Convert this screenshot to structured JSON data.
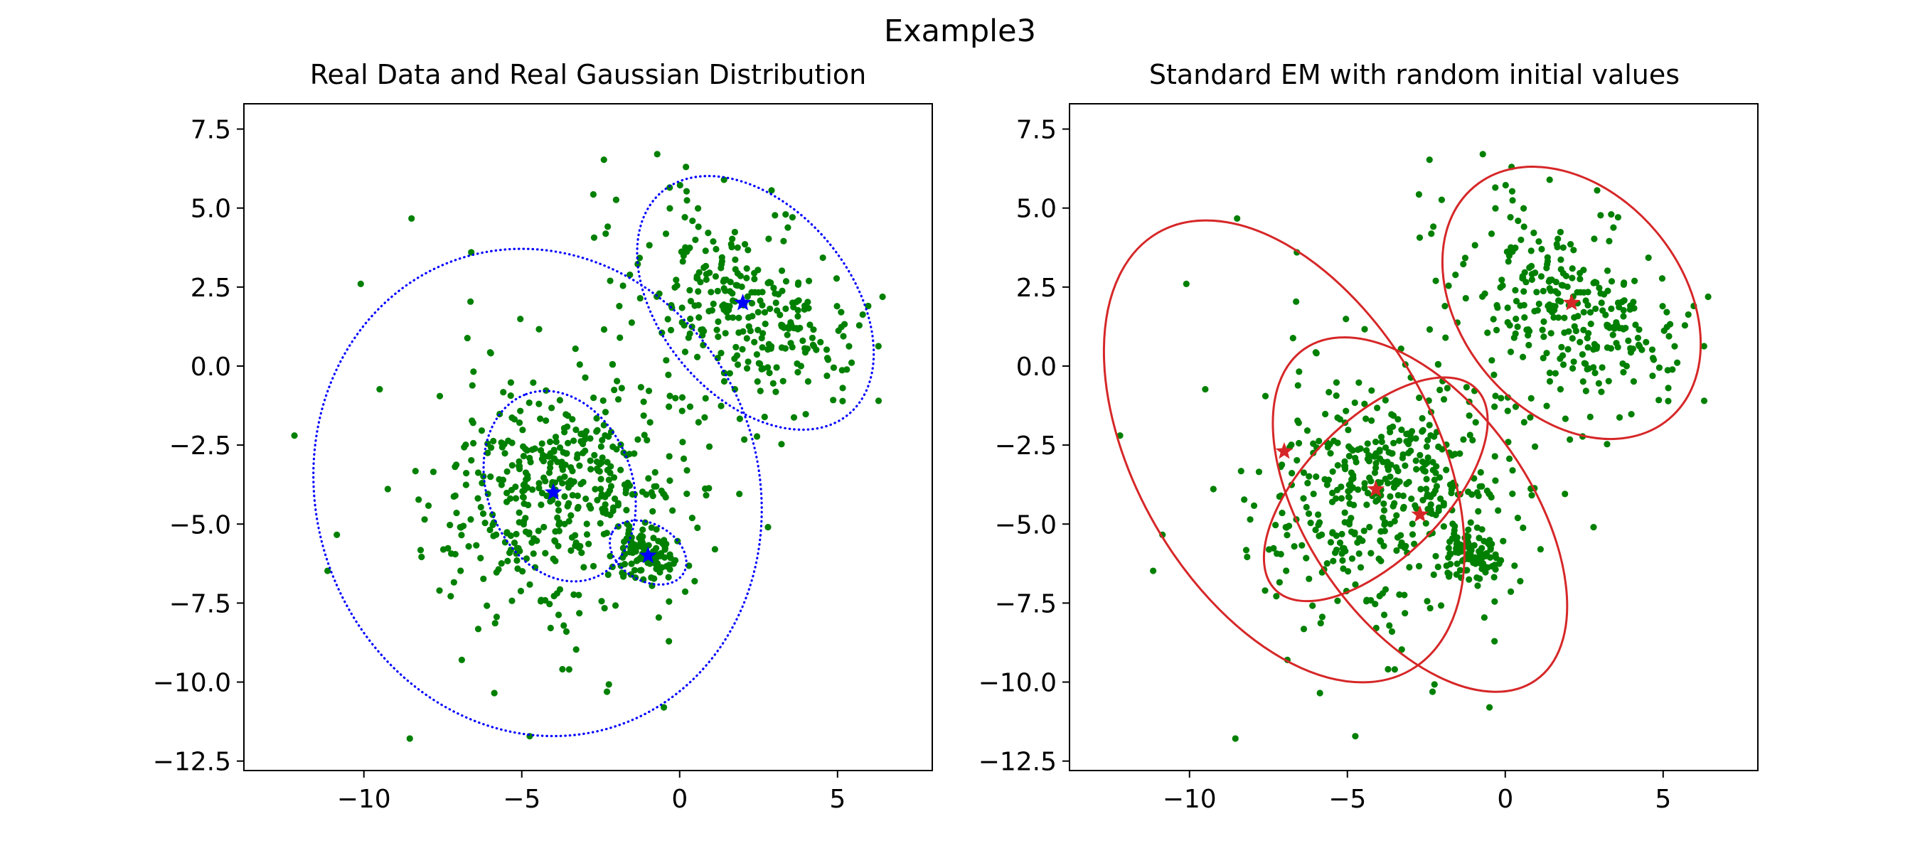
{
  "figure": {
    "suptitle": "Example3"
  },
  "chart_data": [
    {
      "type": "scatter",
      "title": "Real Data and Real Gaussian Distribution",
      "xlabel": "",
      "ylabel": "",
      "xlim": [
        -13.8,
        8.0
      ],
      "ylim": [
        -12.8,
        8.3
      ],
      "xticks": [
        -10,
        -5,
        0,
        5
      ],
      "yticks": [
        7.5,
        5.0,
        2.5,
        0.0,
        -2.5,
        -5.0,
        -7.5,
        -10.0,
        -12.5
      ],
      "xtick_labels": [
        "−10",
        "−5",
        "0",
        "5"
      ],
      "ytick_labels": [
        "7.5",
        "5.0",
        "2.5",
        "0.0",
        "−2.5",
        "−5.0",
        "−7.5",
        "−10.0",
        "−12.5"
      ],
      "grid": false,
      "points_color": "#008000",
      "centers_color": "#0000ff",
      "centers_marker": "star",
      "centers": [
        {
          "x": -4.0,
          "y": -4.0
        },
        {
          "x": 2.0,
          "y": 2.0
        },
        {
          "x": -1.0,
          "y": -6.0
        }
      ],
      "ellipse_style": "dotted",
      "ellipse_color": "#0000ff",
      "ellipses": [
        {
          "cx": -4.5,
          "cy": -4.0,
          "rx": 7.0,
          "ry": 7.8,
          "angle": 20
        },
        {
          "cx": 2.4,
          "cy": 2.0,
          "rx": 4.6,
          "ry": 3.0,
          "angle": 130
        },
        {
          "cx": -3.8,
          "cy": -3.8,
          "rx": 3.1,
          "ry": 2.3,
          "angle": 110
        },
        {
          "cx": -1.0,
          "cy": -5.9,
          "rx": 1.3,
          "ry": 0.9,
          "angle": 150
        }
      ],
      "clusters": [
        {
          "n": 330,
          "mean": [
            -4.0,
            -4.0
          ],
          "cov": [
            [
              2.7,
              0.5
            ],
            [
              0.5,
              2.3
            ]
          ]
        },
        {
          "n": 290,
          "mean": [
            2.0,
            1.9
          ],
          "cov": [
            [
              3.2,
              -1.3
            ],
            [
              -1.3,
              2.6
            ]
          ]
        },
        {
          "n": 140,
          "mean": [
            -3.5,
            -4.0
          ],
          "cov": [
            [
              9.0,
              -1.3
            ],
            [
              -1.3,
              8.0
            ]
          ]
        },
        {
          "n": 90,
          "mean": [
            -1.0,
            -6.0
          ],
          "cov": [
            [
              0.2,
              0.0
            ],
            [
              0.0,
              0.15
            ]
          ]
        }
      ],
      "extra_points": [
        {
          "x": -6.6,
          "y": 3.6
        },
        {
          "x": 0.2,
          "y": 6.3
        },
        {
          "x": -12.2,
          "y": -2.2
        },
        {
          "x": -10.1,
          "y": 2.6
        },
        {
          "x": 6.3,
          "y": -1.1
        },
        {
          "x": -6.9,
          "y": -9.3
        },
        {
          "x": -0.5,
          "y": -10.8
        },
        {
          "x": -3.5,
          "y": -9.6
        }
      ]
    },
    {
      "type": "scatter",
      "title": "Standard EM with random initial values",
      "xlabel": "",
      "ylabel": "",
      "xlim": [
        -13.8,
        8.0
      ],
      "ylim": [
        -12.8,
        8.3
      ],
      "xticks": [
        -10,
        -5,
        0,
        5
      ],
      "yticks": [
        7.5,
        5.0,
        2.5,
        0.0,
        -2.5,
        -5.0,
        -7.5,
        -10.0,
        -12.5
      ],
      "xtick_labels": [
        "−10",
        "−5",
        "0",
        "5"
      ],
      "ytick_labels": [
        "7.5",
        "5.0",
        "2.5",
        "0.0",
        "−2.5",
        "−5.0",
        "−7.5",
        "−10.0",
        "−12.5"
      ],
      "grid": false,
      "points_color": "#008000",
      "centers_color": "#d62728",
      "centers_marker": "star",
      "centers": [
        {
          "x": 2.1,
          "y": 2.0
        },
        {
          "x": -7.0,
          "y": -2.7
        },
        {
          "x": -4.1,
          "y": -3.9
        },
        {
          "x": -2.7,
          "y": -4.7
        }
      ],
      "ellipse_style": "solid",
      "ellipse_color": "#d62728",
      "ellipses": [
        {
          "cx": 2.1,
          "cy": 2.0,
          "rx": 4.8,
          "ry": 3.5,
          "angle": 130
        },
        {
          "cx": -7.0,
          "cy": -2.7,
          "rx": 8.0,
          "ry": 4.7,
          "angle": 120
        },
        {
          "cx": -4.1,
          "cy": -3.9,
          "rx": 4.5,
          "ry": 2.2,
          "angle": 45
        },
        {
          "cx": -2.7,
          "cy": -4.7,
          "rx": 6.4,
          "ry": 3.5,
          "angle": 125
        }
      ],
      "clusters": [
        {
          "n": 330,
          "mean": [
            -4.0,
            -4.0
          ],
          "cov": [
            [
              2.7,
              0.5
            ],
            [
              0.5,
              2.3
            ]
          ]
        },
        {
          "n": 290,
          "mean": [
            2.0,
            1.9
          ],
          "cov": [
            [
              3.2,
              -1.3
            ],
            [
              -1.3,
              2.6
            ]
          ]
        },
        {
          "n": 140,
          "mean": [
            -3.5,
            -4.0
          ],
          "cov": [
            [
              9.0,
              -1.3
            ],
            [
              -1.3,
              8.0
            ]
          ]
        },
        {
          "n": 90,
          "mean": [
            -1.0,
            -6.0
          ],
          "cov": [
            [
              0.2,
              0.0
            ],
            [
              0.0,
              0.15
            ]
          ]
        }
      ],
      "extra_points": [
        {
          "x": -6.6,
          "y": 3.6
        },
        {
          "x": 0.2,
          "y": 6.3
        },
        {
          "x": -12.2,
          "y": -2.2
        },
        {
          "x": -10.1,
          "y": 2.6
        },
        {
          "x": 6.3,
          "y": -1.1
        },
        {
          "x": -6.9,
          "y": -9.3
        },
        {
          "x": -0.5,
          "y": -10.8
        },
        {
          "x": -3.5,
          "y": -9.6
        }
      ]
    }
  ]
}
